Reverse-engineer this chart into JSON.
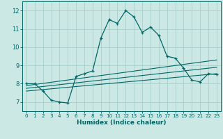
{
  "xlabel": "Humidex (Indice chaleur)",
  "ylabel": "",
  "bg_color": "#cce8e4",
  "grid_color": "#aacfcb",
  "line_color": "#006666",
  "xlim": [
    -0.5,
    23.5
  ],
  "ylim": [
    6.5,
    12.5
  ],
  "xticks": [
    0,
    1,
    2,
    3,
    4,
    5,
    6,
    7,
    8,
    9,
    10,
    11,
    12,
    13,
    14,
    15,
    16,
    17,
    18,
    19,
    20,
    21,
    22,
    23
  ],
  "yticks": [
    7,
    8,
    9,
    10,
    11,
    12
  ],
  "series": [
    {
      "x": [
        0,
        1,
        2,
        3,
        4,
        5,
        6,
        7,
        8,
        9,
        10,
        11,
        12,
        13,
        14,
        15,
        16,
        17,
        18,
        19,
        20,
        21,
        22,
        23
      ],
      "y": [
        8.0,
        8.0,
        7.6,
        7.1,
        7.0,
        6.95,
        8.4,
        8.55,
        8.7,
        10.5,
        11.5,
        11.3,
        12.0,
        11.65,
        10.8,
        11.1,
        10.65,
        9.5,
        9.4,
        8.85,
        8.2,
        8.1,
        8.55,
        8.5
      ],
      "marker": true
    },
    {
      "x": [
        0,
        23
      ],
      "y": [
        7.9,
        9.3
      ],
      "marker": false
    },
    {
      "x": [
        0,
        23
      ],
      "y": [
        7.75,
        8.9
      ],
      "marker": false
    },
    {
      "x": [
        0,
        23
      ],
      "y": [
        7.6,
        8.55
      ],
      "marker": false
    }
  ]
}
